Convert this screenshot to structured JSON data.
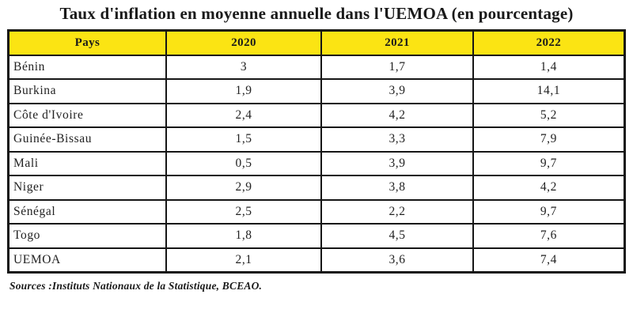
{
  "title": "Taux d'inflation en moyenne annuelle dans l'UEMOA (en pourcentage)",
  "source_note": "Sources :Instituts Nationaux de la Statistique, BCEAO.",
  "colors": {
    "header_bg": "#fbe413",
    "border": "#161616",
    "text": "#1d1d1d"
  },
  "chart_data": {
    "type": "table",
    "title": "Taux d'inflation en moyenne annuelle dans l'UEMOA (en pourcentage)",
    "columns": [
      "Pays",
      "2020",
      "2021",
      "2022"
    ],
    "rows": [
      [
        "Bénin",
        "3",
        "1,7",
        "1,4"
      ],
      [
        "Burkina",
        "1,9",
        "3,9",
        "14,1"
      ],
      [
        "Côte d'Ivoire",
        "2,4",
        "4,2",
        "5,2"
      ],
      [
        "Guinée-Bissau",
        "1,5",
        "3,3",
        "7,9"
      ],
      [
        "Mali",
        "0,5",
        "3,9",
        "9,7"
      ],
      [
        "Niger",
        "2,9",
        "3,8",
        "4,2"
      ],
      [
        "Sénégal",
        "2,5",
        "2,2",
        "9,7"
      ],
      [
        "Togo",
        "1,8",
        "4,5",
        "7,6"
      ],
      [
        "UEMOA",
        "2,1",
        "3,6",
        "7,4"
      ]
    ],
    "values_numeric": {
      "categories": [
        "Bénin",
        "Burkina",
        "Côte d'Ivoire",
        "Guinée-Bissau",
        "Mali",
        "Niger",
        "Sénégal",
        "Togo",
        "UEMOA"
      ],
      "series": [
        {
          "name": "2020",
          "values": [
            3,
            1.9,
            2.4,
            1.5,
            0.5,
            2.9,
            2.5,
            1.8,
            2.1
          ]
        },
        {
          "name": "2021",
          "values": [
            1.7,
            3.9,
            4.2,
            3.3,
            3.9,
            3.8,
            2.2,
            4.5,
            3.6
          ]
        },
        {
          "name": "2022",
          "values": [
            1.4,
            14.1,
            5.2,
            7.9,
            9.7,
            4.2,
            9.7,
            7.6,
            7.4
          ]
        }
      ],
      "unit": "pourcentage"
    }
  }
}
